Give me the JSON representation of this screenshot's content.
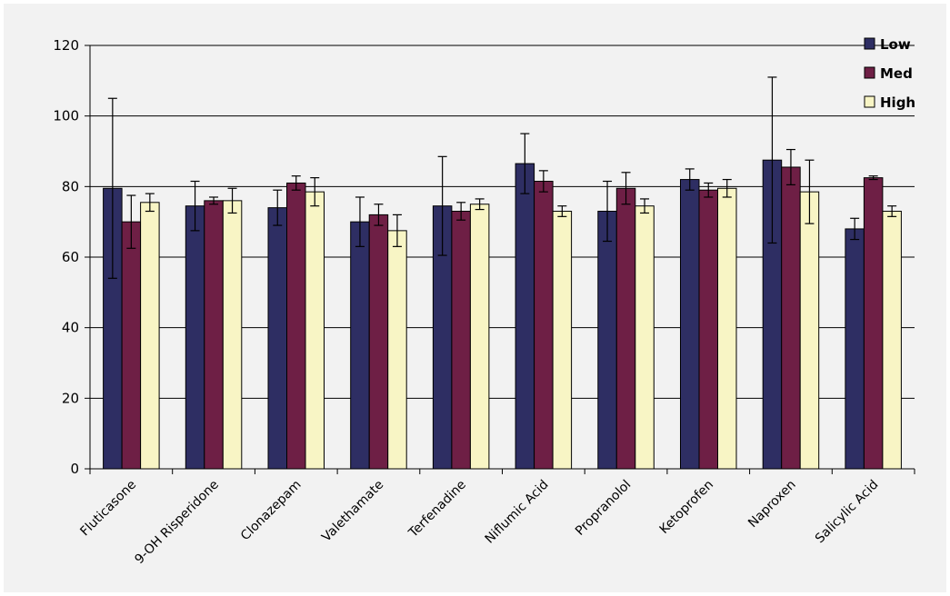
{
  "chart_data": {
    "type": "bar",
    "categories": [
      "Fluticasone",
      "9-OH Risperidone",
      "Clonazepam",
      "Valethamate",
      "Terfenadine",
      "Niflumic Acid",
      "Propranolol",
      "Ketoprofen",
      "Naproxen",
      "Salicylic Acid"
    ],
    "series": [
      {
        "name": "Low",
        "color": "#2e2e63",
        "values": [
          79.5,
          74.5,
          74,
          70,
          74.5,
          86.5,
          73,
          82,
          87.5,
          68
        ],
        "errors": [
          25.5,
          7,
          5,
          7,
          14,
          8.5,
          8.5,
          3,
          23.5,
          3
        ]
      },
      {
        "name": "Med",
        "color": "#6e1f45",
        "values": [
          70,
          76,
          81,
          72,
          73,
          81.5,
          79.5,
          79,
          85.5,
          82.5
        ],
        "errors": [
          7.5,
          1,
          2,
          3,
          2.5,
          3,
          4.5,
          2,
          5,
          0.5
        ]
      },
      {
        "name": "High",
        "color": "#f8f5c5",
        "values": [
          75.5,
          76,
          78.5,
          67.5,
          75,
          73,
          74.5,
          79.5,
          78.5,
          73
        ],
        "errors": [
          2.5,
          3.5,
          4,
          4.5,
          1.5,
          1.5,
          2,
          2.5,
          9,
          1.5
        ]
      }
    ],
    "ylim": [
      0,
      120
    ],
    "yticks": [
      "0",
      "20",
      "40",
      "60",
      "80",
      "100",
      "120"
    ],
    "grid": true,
    "legend_position": "top-right"
  }
}
